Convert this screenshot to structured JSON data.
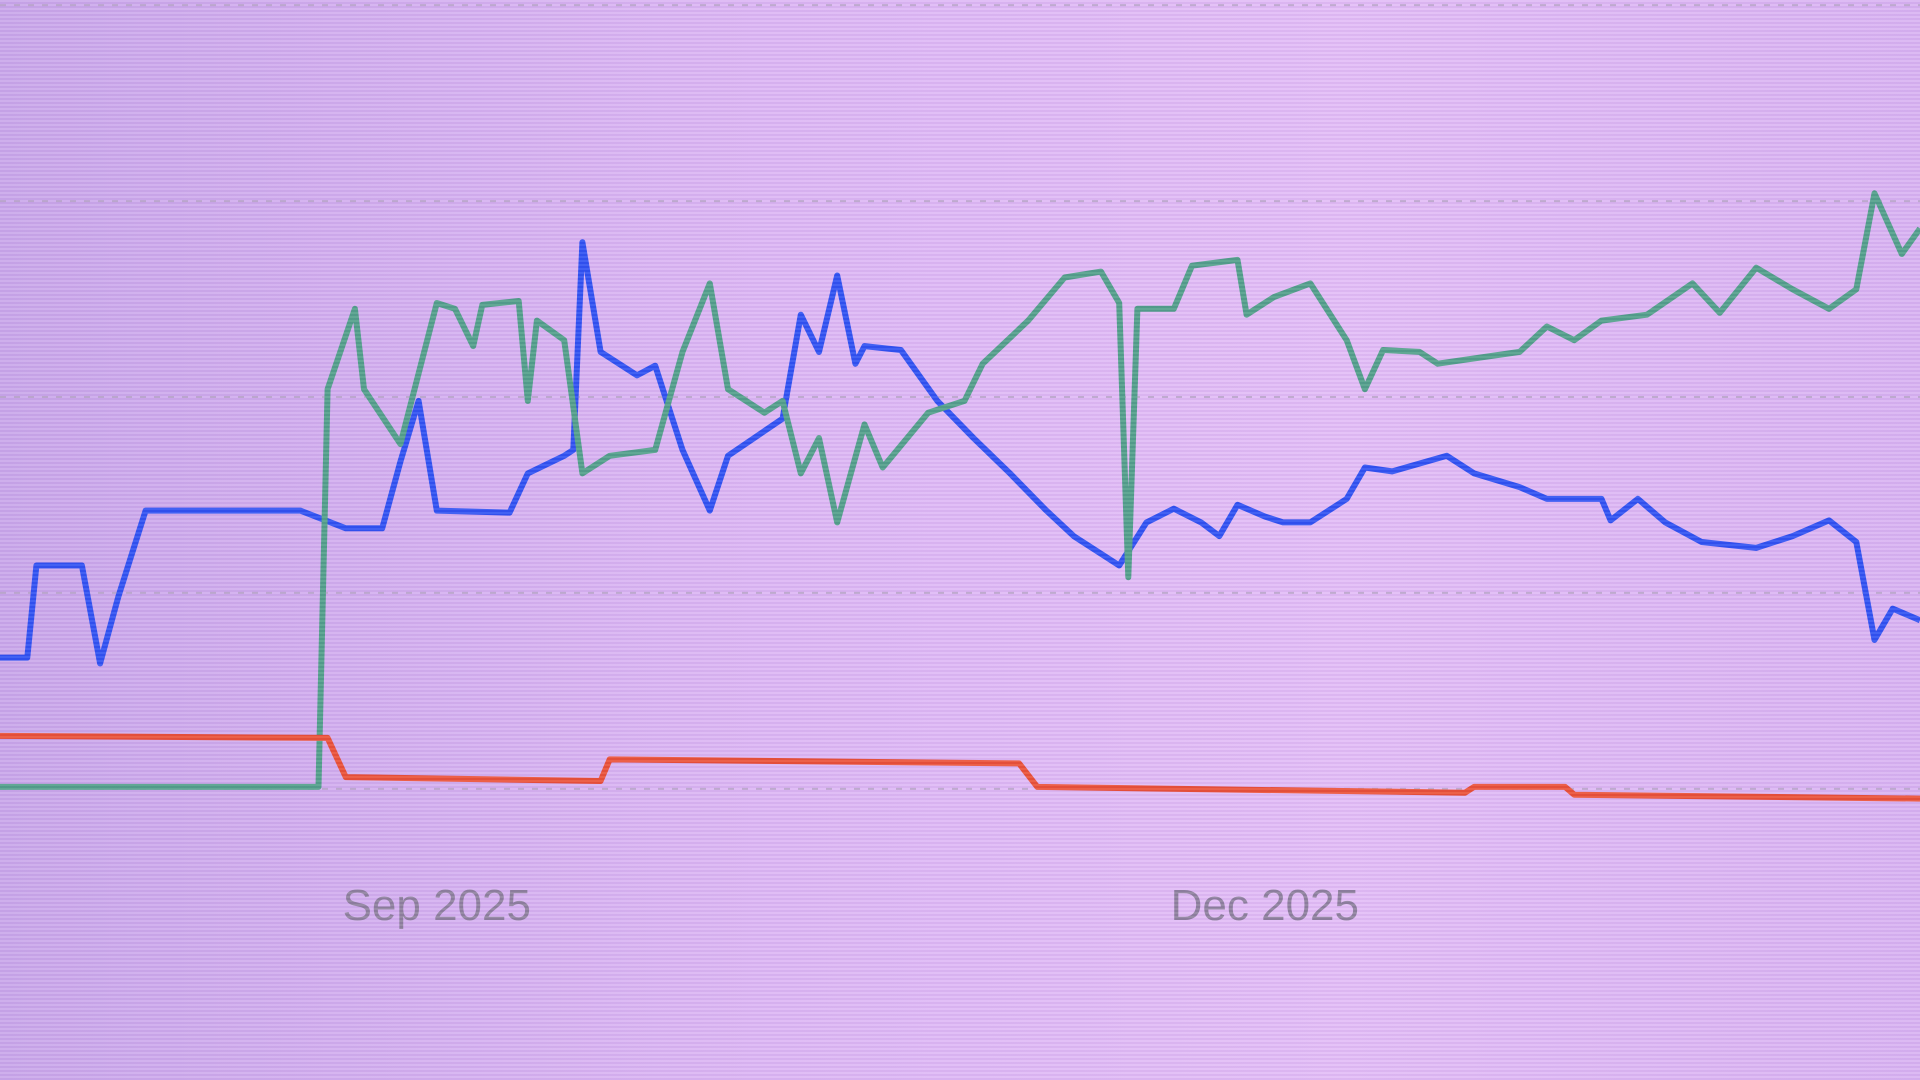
{
  "chart_data": {
    "type": "line",
    "title": "",
    "xlabel": "",
    "ylabel": "",
    "x_type": "date",
    "xlim": [
      "2025-07-15",
      "2026-02-11"
    ],
    "ylim": [
      -0.2,
      4.2
    ],
    "grid": {
      "horizontal": true,
      "style": "dashed",
      "levels": [
        0,
        1,
        2,
        3,
        4
      ]
    },
    "y_tick_labels_visible": false,
    "x_ticks": [
      {
        "date": "2025-09-01",
        "label": "Sep 2025"
      },
      {
        "date": "2025-12-01",
        "label": "Dec 2025"
      }
    ],
    "legend": "none",
    "background_color": "#dcb6f4",
    "series": [
      {
        "color": "#2c4ff2",
        "points": [
          [
            "2025-07-15",
            0.67
          ],
          [
            "2025-07-18",
            0.67
          ],
          [
            "2025-07-19",
            1.14
          ],
          [
            "2025-07-24",
            1.14
          ],
          [
            "2025-07-26",
            0.64
          ],
          [
            "2025-07-28",
            0.98
          ],
          [
            "2025-07-31",
            1.42
          ],
          [
            "2025-08-17",
            1.42
          ],
          [
            "2025-08-22",
            1.33
          ],
          [
            "2025-08-26",
            1.33
          ],
          [
            "2025-08-28",
            1.67
          ],
          [
            "2025-08-30",
            1.98
          ],
          [
            "2025-09-01",
            1.42
          ],
          [
            "2025-09-09",
            1.41
          ],
          [
            "2025-09-11",
            1.61
          ],
          [
            "2025-09-15",
            1.7
          ],
          [
            "2025-09-16",
            1.73
          ],
          [
            "2025-09-17",
            2.79
          ],
          [
            "2025-09-19",
            2.23
          ],
          [
            "2025-09-23",
            2.11
          ],
          [
            "2025-09-25",
            2.16
          ],
          [
            "2025-09-28",
            1.73
          ],
          [
            "2025-10-01",
            1.42
          ],
          [
            "2025-10-03",
            1.7
          ],
          [
            "2025-10-09",
            1.89
          ],
          [
            "2025-10-11",
            2.42
          ],
          [
            "2025-10-13",
            2.23
          ],
          [
            "2025-10-15",
            2.62
          ],
          [
            "2025-10-17",
            2.17
          ],
          [
            "2025-10-18",
            2.26
          ],
          [
            "2025-10-22",
            2.24
          ],
          [
            "2025-10-26",
            1.98
          ],
          [
            "2025-10-30",
            1.79
          ],
          [
            "2025-11-03",
            1.61
          ],
          [
            "2025-11-07",
            1.42
          ],
          [
            "2025-11-10",
            1.29
          ],
          [
            "2025-11-15",
            1.14
          ],
          [
            "2025-11-18",
            1.36
          ],
          [
            "2025-11-21",
            1.43
          ],
          [
            "2025-11-24",
            1.36
          ],
          [
            "2025-11-26",
            1.29
          ],
          [
            "2025-11-28",
            1.45
          ],
          [
            "2025-12-01",
            1.39
          ],
          [
            "2025-12-03",
            1.36
          ],
          [
            "2025-12-06",
            1.36
          ],
          [
            "2025-12-10",
            1.48
          ],
          [
            "2025-12-12",
            1.64
          ],
          [
            "2025-12-15",
            1.62
          ],
          [
            "2025-12-21",
            1.7
          ],
          [
            "2025-12-24",
            1.61
          ],
          [
            "2025-12-29",
            1.54
          ],
          [
            "2026-01-01",
            1.48
          ],
          [
            "2026-01-07",
            1.48
          ],
          [
            "2026-01-08",
            1.37
          ],
          [
            "2026-01-11",
            1.48
          ],
          [
            "2026-01-14",
            1.36
          ],
          [
            "2026-01-18",
            1.26
          ],
          [
            "2026-01-24",
            1.23
          ],
          [
            "2026-01-28",
            1.29
          ],
          [
            "2026-02-01",
            1.37
          ],
          [
            "2026-02-04",
            1.26
          ],
          [
            "2026-02-06",
            0.76
          ],
          [
            "2026-02-08",
            0.92
          ],
          [
            "2026-02-11",
            0.86
          ]
        ]
      },
      {
        "color": "#4f9e88",
        "points": [
          [
            "2025-07-15",
            0.01
          ],
          [
            "2025-08-19",
            0.01
          ],
          [
            "2025-08-20",
            2.04
          ],
          [
            "2025-08-23",
            2.45
          ],
          [
            "2025-08-24",
            2.04
          ],
          [
            "2025-08-28",
            1.76
          ],
          [
            "2025-09-01",
            2.48
          ],
          [
            "2025-09-03",
            2.45
          ],
          [
            "2025-09-05",
            2.26
          ],
          [
            "2025-09-06",
            2.47
          ],
          [
            "2025-09-10",
            2.49
          ],
          [
            "2025-09-11",
            1.98
          ],
          [
            "2025-09-12",
            2.39
          ],
          [
            "2025-09-15",
            2.29
          ],
          [
            "2025-09-17",
            1.61
          ],
          [
            "2025-09-20",
            1.7
          ],
          [
            "2025-09-25",
            1.73
          ],
          [
            "2025-09-28",
            2.23
          ],
          [
            "2025-10-01",
            2.58
          ],
          [
            "2025-10-03",
            2.04
          ],
          [
            "2025-10-07",
            1.92
          ],
          [
            "2025-10-09",
            1.98
          ],
          [
            "2025-10-11",
            1.61
          ],
          [
            "2025-10-13",
            1.79
          ],
          [
            "2025-10-15",
            1.36
          ],
          [
            "2025-10-18",
            1.86
          ],
          [
            "2025-10-20",
            1.64
          ],
          [
            "2025-10-25",
            1.92
          ],
          [
            "2025-10-29",
            1.98
          ],
          [
            "2025-10-31",
            2.17
          ],
          [
            "2025-11-05",
            2.39
          ],
          [
            "2025-11-09",
            2.61
          ],
          [
            "2025-11-13",
            2.64
          ],
          [
            "2025-11-15",
            2.48
          ],
          [
            "2025-11-16",
            1.08
          ],
          [
            "2025-11-17",
            2.45
          ],
          [
            "2025-11-21",
            2.45
          ],
          [
            "2025-11-23",
            2.67
          ],
          [
            "2025-11-28",
            2.7
          ],
          [
            "2025-11-29",
            2.42
          ],
          [
            "2025-12-02",
            2.51
          ],
          [
            "2025-12-06",
            2.58
          ],
          [
            "2025-12-10",
            2.29
          ],
          [
            "2025-12-12",
            2.04
          ],
          [
            "2025-12-14",
            2.24
          ],
          [
            "2025-12-18",
            2.23
          ],
          [
            "2025-12-20",
            2.17
          ],
          [
            "2025-12-29",
            2.23
          ],
          [
            "2026-01-01",
            2.36
          ],
          [
            "2026-01-04",
            2.29
          ],
          [
            "2026-01-07",
            2.39
          ],
          [
            "2026-01-12",
            2.42
          ],
          [
            "2026-01-17",
            2.58
          ],
          [
            "2026-01-20",
            2.43
          ],
          [
            "2026-01-24",
            2.66
          ],
          [
            "2026-01-28",
            2.55
          ],
          [
            "2026-02-01",
            2.45
          ],
          [
            "2026-02-04",
            2.55
          ],
          [
            "2026-02-06",
            3.04
          ],
          [
            "2026-02-09",
            2.73
          ],
          [
            "2026-02-11",
            2.86
          ]
        ]
      },
      {
        "color": "#ea4e34",
        "points": [
          [
            "2025-07-15",
            0.27
          ],
          [
            "2025-08-20",
            0.26
          ],
          [
            "2025-08-22",
            0.06
          ],
          [
            "2025-09-19",
            0.04
          ],
          [
            "2025-09-20",
            0.15
          ],
          [
            "2025-11-04",
            0.13
          ],
          [
            "2025-11-06",
            0.01
          ],
          [
            "2025-12-23",
            -0.02
          ],
          [
            "2025-12-24",
            0.01
          ],
          [
            "2026-01-03",
            0.01
          ],
          [
            "2026-01-04",
            -0.03
          ],
          [
            "2026-02-11",
            -0.05
          ]
        ]
      }
    ]
  }
}
